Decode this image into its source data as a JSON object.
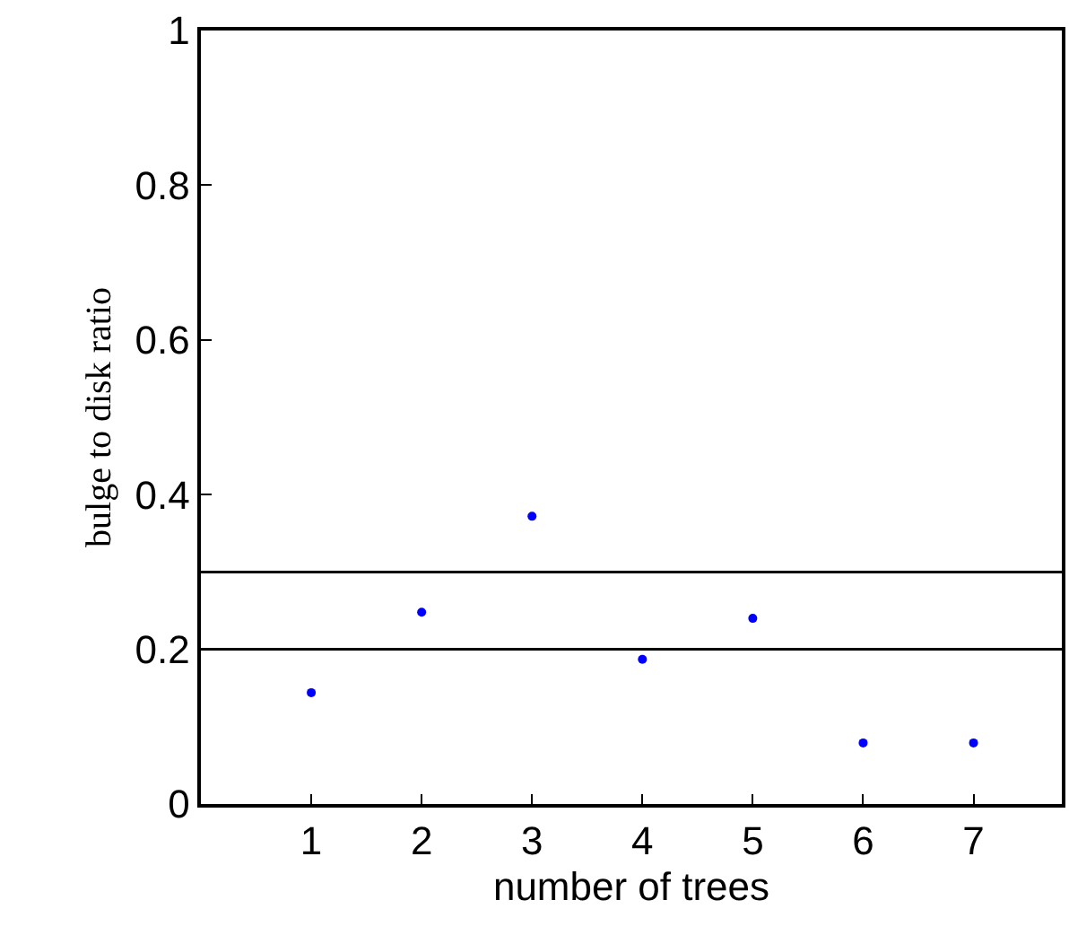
{
  "chart_data": {
    "type": "scatter",
    "xlabel": "number of trees",
    "ylabel": "bulge to disk ratio",
    "x": [
      1,
      2,
      3,
      4,
      5,
      6,
      7
    ],
    "series": [
      {
        "color": "#0000ff",
        "values": [
          0.144,
          0.248,
          0.372,
          0.187,
          0.24,
          0.079,
          0.079
        ]
      }
    ],
    "marker": "circle",
    "xlim": [
      0,
      7.8
    ],
    "xticks": [
      1,
      2,
      3,
      4,
      5,
      6,
      7
    ],
    "ylim": [
      0,
      1
    ],
    "yticks": [
      0,
      0.2,
      0.4,
      0.6,
      0.8,
      1
    ],
    "ref_lines": [
      {
        "axis": "y",
        "value": 0.2,
        "color": "#000000"
      },
      {
        "axis": "y",
        "value": 0.3,
        "color": "#000000"
      }
    ],
    "tick_labels": "xy"
  }
}
